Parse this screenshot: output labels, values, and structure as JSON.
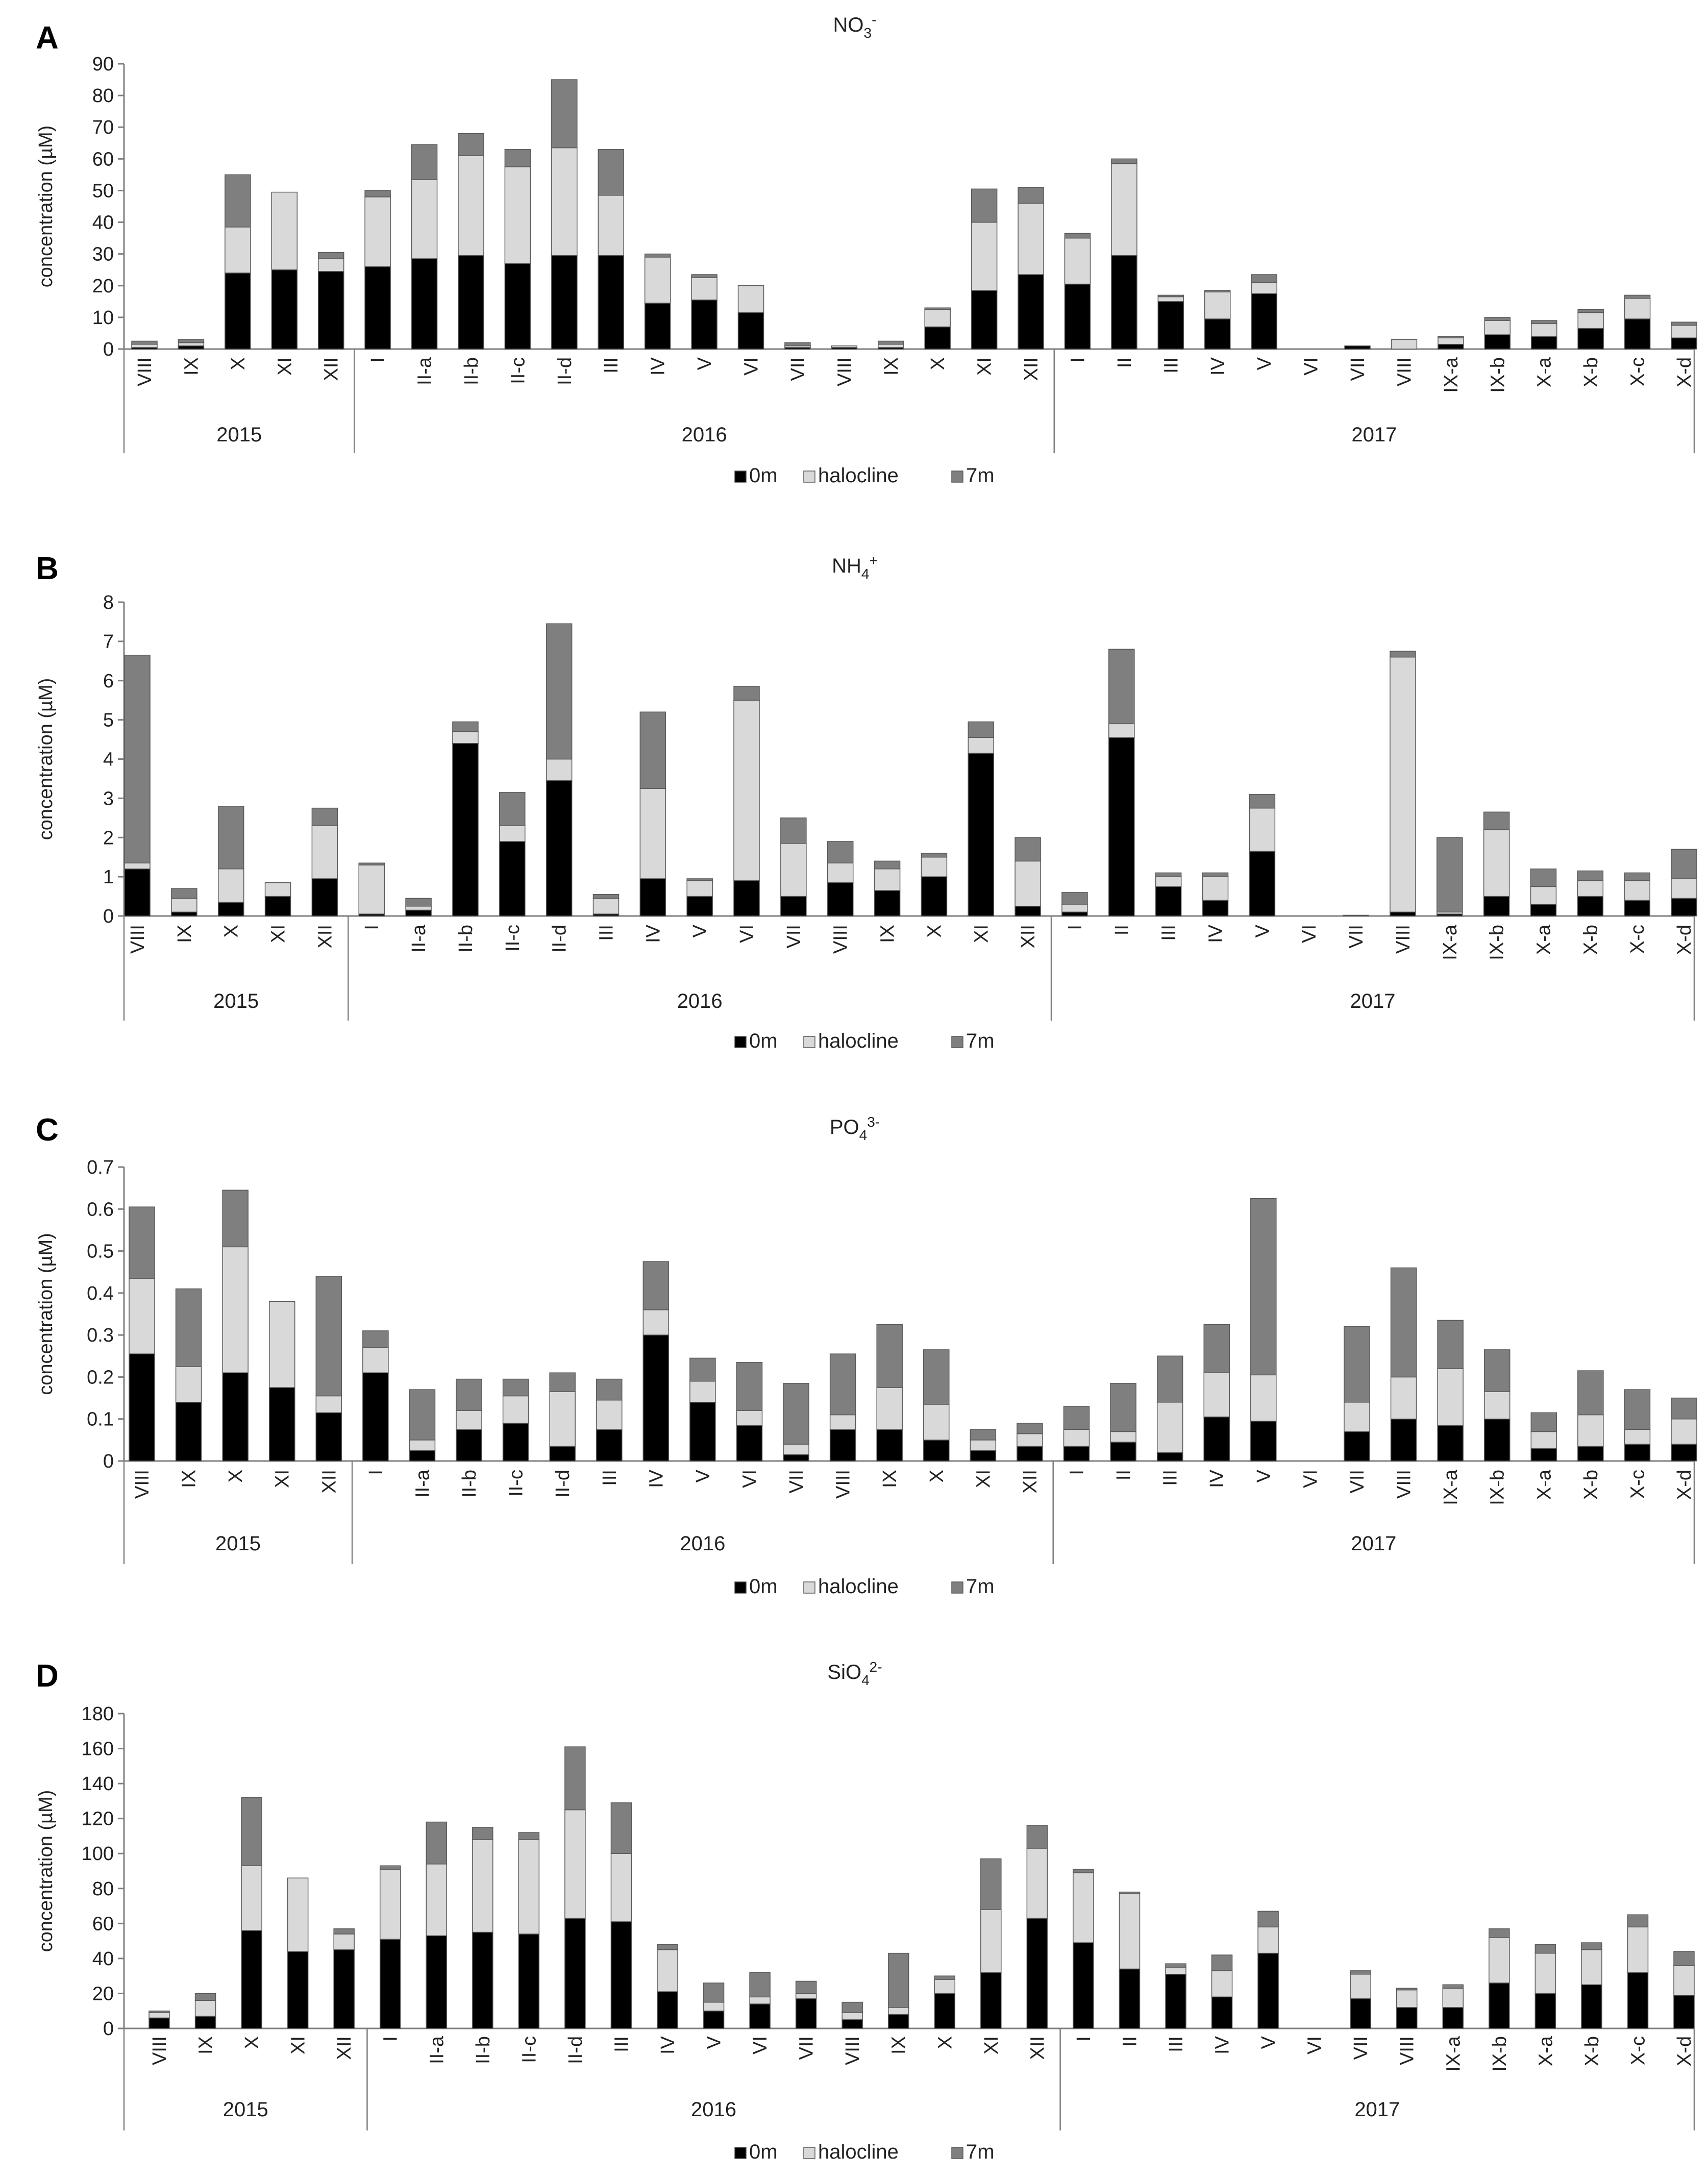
{
  "figure": {
    "legend": [
      "0m",
      "halocline",
      "7m"
    ],
    "colors": {
      "0m": "#000000",
      "halocline": "#d9d9d9",
      "7m": "#7f7f7f",
      "bar_outline": "#595959"
    }
  },
  "chart_data": [
    {
      "type": "bar",
      "stacked": true,
      "panel": "A",
      "title": "NO3-",
      "title_main": "NO",
      "title_sub": "3",
      "title_sup": "-",
      "ylabel": "concentration (µM)",
      "ylim": [
        0,
        90
      ],
      "yticks": [
        "0",
        "10",
        "20",
        "30",
        "40",
        "50",
        "60",
        "70",
        "80",
        "90"
      ],
      "categories": [
        "VIII",
        "IX",
        "X",
        "XI",
        "XII",
        "I",
        "II-a",
        "II-b",
        "II-c",
        "II-d",
        "III",
        "IV",
        "V",
        "VI",
        "VII",
        "VIII",
        "IX",
        "X",
        "XI",
        "XII",
        "I",
        "II",
        "III",
        "IV",
        "V",
        "VI",
        "VII",
        "VIII",
        "IX-a",
        "IX-b",
        "X-a",
        "X-b",
        "X-c",
        "X-d"
      ],
      "year_groups": [
        {
          "label": "2015",
          "count": 5
        },
        {
          "label": "2016",
          "count": 15
        },
        {
          "label": "2017",
          "count": 14
        }
      ],
      "series": [
        {
          "name": "0m",
          "values": [
            0.5,
            1,
            24,
            25,
            24.5,
            26,
            28.5,
            29.5,
            27,
            29.5,
            29.5,
            14.5,
            15.5,
            11.5,
            0.5,
            0.5,
            0.5,
            7,
            18.5,
            23.5,
            20.5,
            29.5,
            15,
            9.5,
            17.5,
            0,
            1,
            0,
            1.5,
            4.5,
            4,
            6.5,
            9.5,
            3.5
          ]
        },
        {
          "name": "halocline",
          "values": [
            1,
            1,
            14.5,
            24.5,
            4,
            22,
            25,
            31.5,
            30.5,
            34,
            19,
            14.5,
            7,
            8.5,
            0.5,
            0.5,
            1,
            5.5,
            21.5,
            22.5,
            14.5,
            29,
            1.5,
            8.5,
            3.5,
            0,
            0,
            3,
            2,
            4.5,
            4,
            5,
            6.5,
            4
          ]
        },
        {
          "name": "7m",
          "values": [
            1,
            1,
            16.5,
            0,
            2,
            2,
            11,
            7,
            5.5,
            21.5,
            14.5,
            1,
            1,
            0,
            1,
            0,
            1,
            0.5,
            10.5,
            5,
            1.5,
            1.5,
            0.5,
            0.5,
            2.5,
            0,
            0,
            0,
            0.5,
            1,
            1,
            1,
            1,
            1
          ]
        }
      ]
    },
    {
      "type": "bar",
      "stacked": true,
      "panel": "B",
      "title": "NH4+",
      "title_main": "NH",
      "title_sub": "4",
      "title_sup": "+",
      "ylabel": "concentration (µM)",
      "ylim": [
        0,
        8
      ],
      "yticks": [
        "0",
        "1",
        "2",
        "3",
        "4",
        "5",
        "6",
        "7",
        "8"
      ],
      "categories": [
        "VIII",
        "IX",
        "X",
        "XI",
        "XII",
        "I",
        "II-a",
        "II-b",
        "II-c",
        "II-d",
        "III",
        "IV",
        "V",
        "VI",
        "VII",
        "VIII",
        "IX",
        "X",
        "XI",
        "XII",
        "I",
        "II",
        "III",
        "IV",
        "V",
        "VI",
        "VII",
        "VIII",
        "IX-a",
        "IX-b",
        "X-a",
        "X-b",
        "X-c",
        "X-d"
      ],
      "year_groups": [
        {
          "label": "2015",
          "count": 5
        },
        {
          "label": "2016",
          "count": 15
        },
        {
          "label": "2017",
          "count": 14
        }
      ],
      "series": [
        {
          "name": "0m",
          "values": [
            1.2,
            0.1,
            0.35,
            0.5,
            0.95,
            0.05,
            0.15,
            4.4,
            1.9,
            3.45,
            0.05,
            0.95,
            0.5,
            0.9,
            0.5,
            0.85,
            0.65,
            1.0,
            4.15,
            0.25,
            0.1,
            4.55,
            0.75,
            0.4,
            1.65,
            0,
            0.02,
            0.1,
            0.05,
            0.5,
            0.3,
            0.5,
            0.4,
            0.45
          ]
        },
        {
          "name": "halocline",
          "values": [
            0.15,
            0.35,
            0.85,
            0.35,
            1.35,
            1.25,
            0.1,
            0.3,
            0.4,
            0.55,
            0.4,
            2.3,
            0.4,
            4.6,
            1.35,
            0.5,
            0.55,
            0.5,
            0.4,
            1.15,
            0.2,
            0.35,
            0.25,
            0.6,
            1.1,
            0,
            0,
            6.5,
            0.05,
            1.7,
            0.45,
            0.4,
            0.5,
            0.5
          ]
        },
        {
          "name": "7m",
          "values": [
            5.3,
            0.25,
            1.6,
            0,
            0.45,
            0.05,
            0.2,
            0.25,
            0.85,
            3.45,
            0.1,
            1.95,
            0.05,
            0.35,
            0.65,
            0.55,
            0.2,
            0.1,
            0.4,
            0.6,
            0.3,
            1.9,
            0.1,
            0.1,
            0.35,
            0,
            0,
            0.15,
            1.9,
            0.45,
            0.45,
            0.25,
            0.2,
            0.75
          ]
        }
      ]
    },
    {
      "type": "bar",
      "stacked": true,
      "panel": "C",
      "title": "PO43-",
      "title_main": "PO",
      "title_sub": "4",
      "title_sup": "3-",
      "ylabel": "concentration (µM)",
      "ylim": [
        0,
        0.7
      ],
      "yticks": [
        "0",
        "0.1",
        "0.2",
        "0.3",
        "0.4",
        "0.5",
        "0.6",
        "0.7"
      ],
      "categories": [
        "VIII",
        "IX",
        "X",
        "XI",
        "XII",
        "I",
        "II-a",
        "II-b",
        "II-c",
        "II-d",
        "III",
        "IV",
        "V",
        "VI",
        "VII",
        "VIII",
        "IX",
        "X",
        "XI",
        "XII",
        "I",
        "II",
        "III",
        "IV",
        "V",
        "VI",
        "VII",
        "VIII",
        "IX-a",
        "IX-b",
        "X-a",
        "X-b",
        "X-c",
        "X-d"
      ],
      "year_groups": [
        {
          "label": "2015",
          "count": 5
        },
        {
          "label": "2016",
          "count": 15
        },
        {
          "label": "2017",
          "count": 14
        }
      ],
      "series": [
        {
          "name": "0m",
          "values": [
            0.255,
            0.14,
            0.21,
            0.175,
            0.115,
            0.21,
            0.025,
            0.075,
            0.09,
            0.035,
            0.075,
            0.3,
            0.14,
            0.085,
            0.015,
            0.075,
            0.075,
            0.05,
            0.025,
            0.035,
            0.035,
            0.045,
            0.02,
            0.105,
            0.095,
            0,
            0.07,
            0.1,
            0.085,
            0.1,
            0.03,
            0.035,
            0.04,
            0.04
          ]
        },
        {
          "name": "halocline",
          "values": [
            0.18,
            0.085,
            0.3,
            0.205,
            0.04,
            0.06,
            0.025,
            0.045,
            0.065,
            0.13,
            0.07,
            0.06,
            0.05,
            0.035,
            0.025,
            0.035,
            0.1,
            0.085,
            0.025,
            0.03,
            0.04,
            0.025,
            0.12,
            0.105,
            0.11,
            0,
            0.07,
            0.1,
            0.135,
            0.065,
            0.04,
            0.075,
            0.035,
            0.06
          ]
        },
        {
          "name": "7m",
          "values": [
            0.17,
            0.185,
            0.135,
            0,
            0.285,
            0.04,
            0.12,
            0.075,
            0.04,
            0.045,
            0.05,
            0.115,
            0.055,
            0.115,
            0.145,
            0.145,
            0.15,
            0.13,
            0.025,
            0.025,
            0.055,
            0.115,
            0.11,
            0.115,
            0.42,
            0,
            0.18,
            0.26,
            0.115,
            0.1,
            0.045,
            0.105,
            0.095,
            0.05
          ]
        }
      ]
    },
    {
      "type": "bar",
      "stacked": true,
      "panel": "D",
      "title": "SiO42-",
      "title_main": "SiO",
      "title_sub": "4",
      "title_sup": "2-",
      "ylabel": "concentration (µM)",
      "ylim": [
        0,
        180
      ],
      "yticks": [
        "0",
        "20",
        "40",
        "60",
        "80",
        "100",
        "120",
        "140",
        "160",
        "180"
      ],
      "categories": [
        "VIII",
        "IX",
        "X",
        "XI",
        "XII",
        "I",
        "II-a",
        "II-b",
        "II-c",
        "II-d",
        "III",
        "IV",
        "V",
        "VI",
        "VII",
        "VIII",
        "IX",
        "X",
        "XI",
        "XII",
        "I",
        "II",
        "III",
        "IV",
        "V",
        "VI",
        "VII",
        "VIII",
        "IX-a",
        "IX-b",
        "X-a",
        "X-b",
        "X-c",
        "X-d"
      ],
      "year_groups": [
        {
          "label": "2015",
          "count": 5
        },
        {
          "label": "2016",
          "count": 15
        },
        {
          "label": "2017",
          "count": 14
        }
      ],
      "series": [
        {
          "name": "0m",
          "values": [
            6,
            7,
            56,
            44,
            45,
            51,
            53,
            55,
            54,
            63,
            61,
            21,
            10,
            14,
            17,
            5,
            8,
            20,
            32,
            63,
            49,
            34,
            31,
            18,
            43,
            0,
            17,
            12,
            12,
            26,
            20,
            25,
            32,
            19
          ]
        },
        {
          "name": "halocline",
          "values": [
            3,
            9,
            37,
            42,
            9,
            40,
            41,
            53,
            54,
            62,
            39,
            24,
            5,
            4,
            3,
            4,
            4,
            8,
            36,
            40,
            40,
            43,
            4,
            15,
            15,
            0,
            14,
            10,
            11,
            26,
            23,
            20,
            26,
            17
          ]
        },
        {
          "name": "7m",
          "values": [
            1,
            4,
            39,
            0,
            3,
            2,
            24,
            7,
            4,
            36,
            29,
            3,
            11,
            14,
            7,
            6,
            31,
            2,
            29,
            13,
            2,
            1,
            2,
            9,
            9,
            0,
            2,
            1,
            2,
            5,
            5,
            4,
            7,
            8
          ]
        }
      ]
    }
  ]
}
